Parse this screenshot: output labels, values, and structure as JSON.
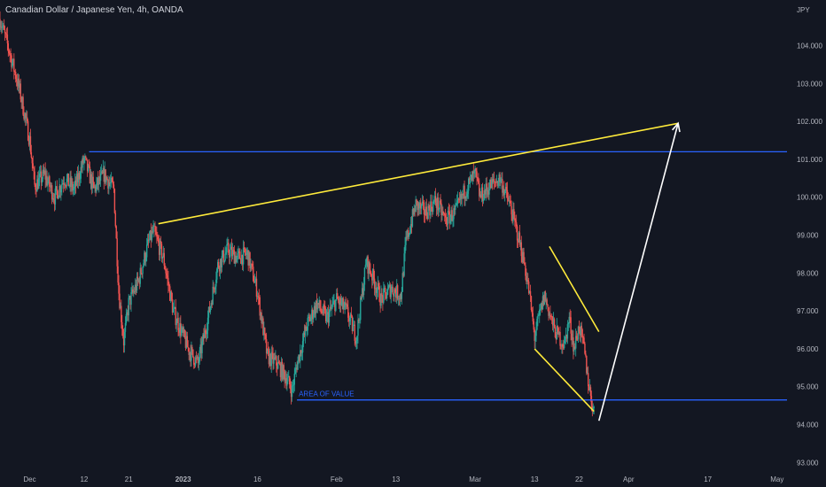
{
  "header": {
    "title": "Canadian Dollar / Japanese Yen, 4h, OANDA"
  },
  "price_axis": {
    "unit": "JPY",
    "ticks": [
      "104.000",
      "103.000",
      "102.000",
      "101.000",
      "100.000",
      "99.000",
      "98.000",
      "97.000",
      "96.000",
      "95.000",
      "94.000",
      "93.000"
    ]
  },
  "time_axis": {
    "ticks": [
      "Dec",
      "12",
      "21",
      "2023",
      "16",
      "Feb",
      "13",
      "Mar",
      "13",
      "22",
      "Apr",
      "17",
      "May"
    ]
  },
  "annotations": {
    "area_label": "AREA OF VALUE"
  },
  "colors": {
    "background": "#131722",
    "bull": "#26a69a",
    "bear": "#ef5350",
    "resistance_line": "#2962ff",
    "trend_line": "#ffeb3b",
    "projection": "#ffffff"
  },
  "chart_data": {
    "type": "line",
    "symbol": "CADJPY",
    "timeframe": "4h",
    "y_unit": "JPY",
    "ylim": [
      93.0,
      104.8
    ],
    "xlim": [
      "2022-11-25",
      "2023-05-03"
    ],
    "grid": false,
    "price_path": [
      [
        "2022-11-25",
        104.7
      ],
      [
        "2022-11-27",
        103.8
      ],
      [
        "2022-11-29",
        102.8
      ],
      [
        "2022-12-01",
        101.5
      ],
      [
        "2022-12-02",
        100.3
      ],
      [
        "2022-12-04",
        100.6
      ],
      [
        "2022-12-06",
        100.0
      ],
      [
        "2022-12-08",
        100.5
      ],
      [
        "2022-12-10",
        100.2
      ],
      [
        "2022-12-12",
        101.0
      ],
      [
        "2022-12-14",
        100.2
      ],
      [
        "2022-12-16",
        100.6
      ],
      [
        "2022-12-18",
        100.2
      ],
      [
        "2022-12-19",
        97.5
      ],
      [
        "2022-12-20",
        96.2
      ],
      [
        "2022-12-21",
        97.2
      ],
      [
        "2022-12-23",
        97.8
      ],
      [
        "2022-12-25",
        98.8
      ],
      [
        "2022-12-26",
        99.1
      ],
      [
        "2022-12-28",
        98.4
      ],
      [
        "2022-12-30",
        97.0
      ],
      [
        "2023-01-02",
        96.0
      ],
      [
        "2023-01-04",
        95.6
      ],
      [
        "2023-01-06",
        96.8
      ],
      [
        "2023-01-08",
        98.2
      ],
      [
        "2023-01-10",
        98.6
      ],
      [
        "2023-01-12",
        98.4
      ],
      [
        "2023-01-14",
        98.5
      ],
      [
        "2023-01-16",
        97.5
      ],
      [
        "2023-01-18",
        95.8
      ],
      [
        "2023-01-20",
        95.6
      ],
      [
        "2023-01-22",
        95.2
      ],
      [
        "2023-01-23",
        94.9
      ],
      [
        "2023-01-24",
        95.6
      ],
      [
        "2023-01-26",
        96.6
      ],
      [
        "2023-01-28",
        97.2
      ],
      [
        "2023-01-30",
        96.8
      ],
      [
        "2023-02-01",
        97.3
      ],
      [
        "2023-02-03",
        97.0
      ],
      [
        "2023-02-05",
        96.3
      ],
      [
        "2023-02-07",
        98.3
      ],
      [
        "2023-02-08",
        98.0
      ],
      [
        "2023-02-10",
        97.3
      ],
      [
        "2023-02-12",
        97.6
      ],
      [
        "2023-02-14",
        97.4
      ],
      [
        "2023-02-15",
        98.8
      ],
      [
        "2023-02-17",
        99.8
      ],
      [
        "2023-02-19",
        99.6
      ],
      [
        "2023-02-21",
        99.9
      ],
      [
        "2023-02-23",
        99.4
      ],
      [
        "2023-02-25",
        99.6
      ],
      [
        "2023-02-27",
        100.2
      ],
      [
        "2023-03-01",
        100.6
      ],
      [
        "2023-03-02",
        100.0
      ],
      [
        "2023-03-04",
        100.3
      ],
      [
        "2023-03-06",
        100.5
      ],
      [
        "2023-03-08",
        99.8
      ],
      [
        "2023-03-10",
        98.8
      ],
      [
        "2023-03-11",
        98.2
      ],
      [
        "2023-03-12",
        97.4
      ],
      [
        "2023-03-13",
        96.3
      ],
      [
        "2023-03-14",
        96.9
      ],
      [
        "2023-03-15",
        97.4
      ],
      [
        "2023-03-17",
        96.5
      ],
      [
        "2023-03-19",
        96.1
      ],
      [
        "2023-03-20",
        96.8
      ],
      [
        "2023-03-21",
        96.0
      ],
      [
        "2023-03-22",
        96.6
      ],
      [
        "2023-03-23",
        96.0
      ],
      [
        "2023-03-24",
        95.0
      ],
      [
        "2023-03-25",
        94.3
      ]
    ],
    "horizontal_lines": [
      {
        "price": 101.2,
        "start": "2022-12-13"
      },
      {
        "price": 94.65,
        "start": "2023-01-24",
        "label": "AREA OF VALUE"
      }
    ],
    "trend_lines": [
      {
        "from": [
          "2022-12-27",
          99.3
        ],
        "to": [
          "2023-04-11",
          101.95
        ]
      },
      {
        "from": [
          "2023-03-16",
          98.7
        ],
        "to": [
          "2023-03-26",
          96.45
        ]
      },
      {
        "from": [
          "2023-03-13",
          96.0
        ],
        "to": [
          "2023-03-25",
          94.35
        ]
      }
    ],
    "projection": {
      "from": [
        "2023-03-26",
        94.1
      ],
      "to": [
        "2023-04-11",
        101.95
      ]
    }
  }
}
